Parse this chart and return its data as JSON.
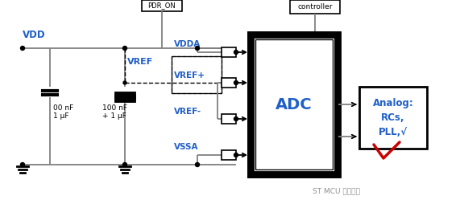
{
  "bg_color": "#ffffff",
  "vdd_label": "VDD",
  "vref_label": "VREF",
  "vdda_label": "VDDA",
  "vrefp_label": "VREF+",
  "vrefm_label": "VREF-",
  "vssa_label": "VSSA",
  "adc_label": "ADC",
  "analog_line1": "Analog:",
  "analog_line2": "RCs,",
  "analog_line3": "PLL,√",
  "cap1_label_line1": "00 nF",
  "cap1_label_line2": "1 μF",
  "cap2_label_line1": "100 nF",
  "cap2_label_line2": "+ 1 μF",
  "pdr_label": "PDR_ON",
  "controller_label": "controller",
  "text_color": "#1f5fc8",
  "line_color": "#808080",
  "box_color": "#000000",
  "red_color": "#cc0000",
  "watermark": "ST MCU 信息交流",
  "watermark_color": "#909090"
}
